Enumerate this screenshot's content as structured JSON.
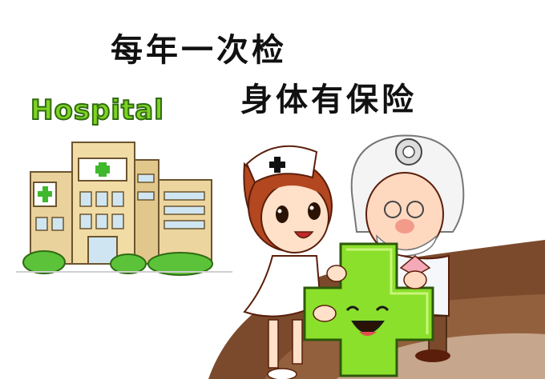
{
  "poster": {
    "slogan_line1": "每年一次检",
    "slogan_line2": "身体有保险",
    "hospital_sign": "Hospital"
  },
  "colors": {
    "brown_floor": "#7b4a2c",
    "green_cross": "#8be02b",
    "hospital_green": "#7ed321",
    "building": "#e9d29b"
  },
  "icons": [
    "hospital-building",
    "nurse-character",
    "doctor-character",
    "smiling-green-cross"
  ]
}
